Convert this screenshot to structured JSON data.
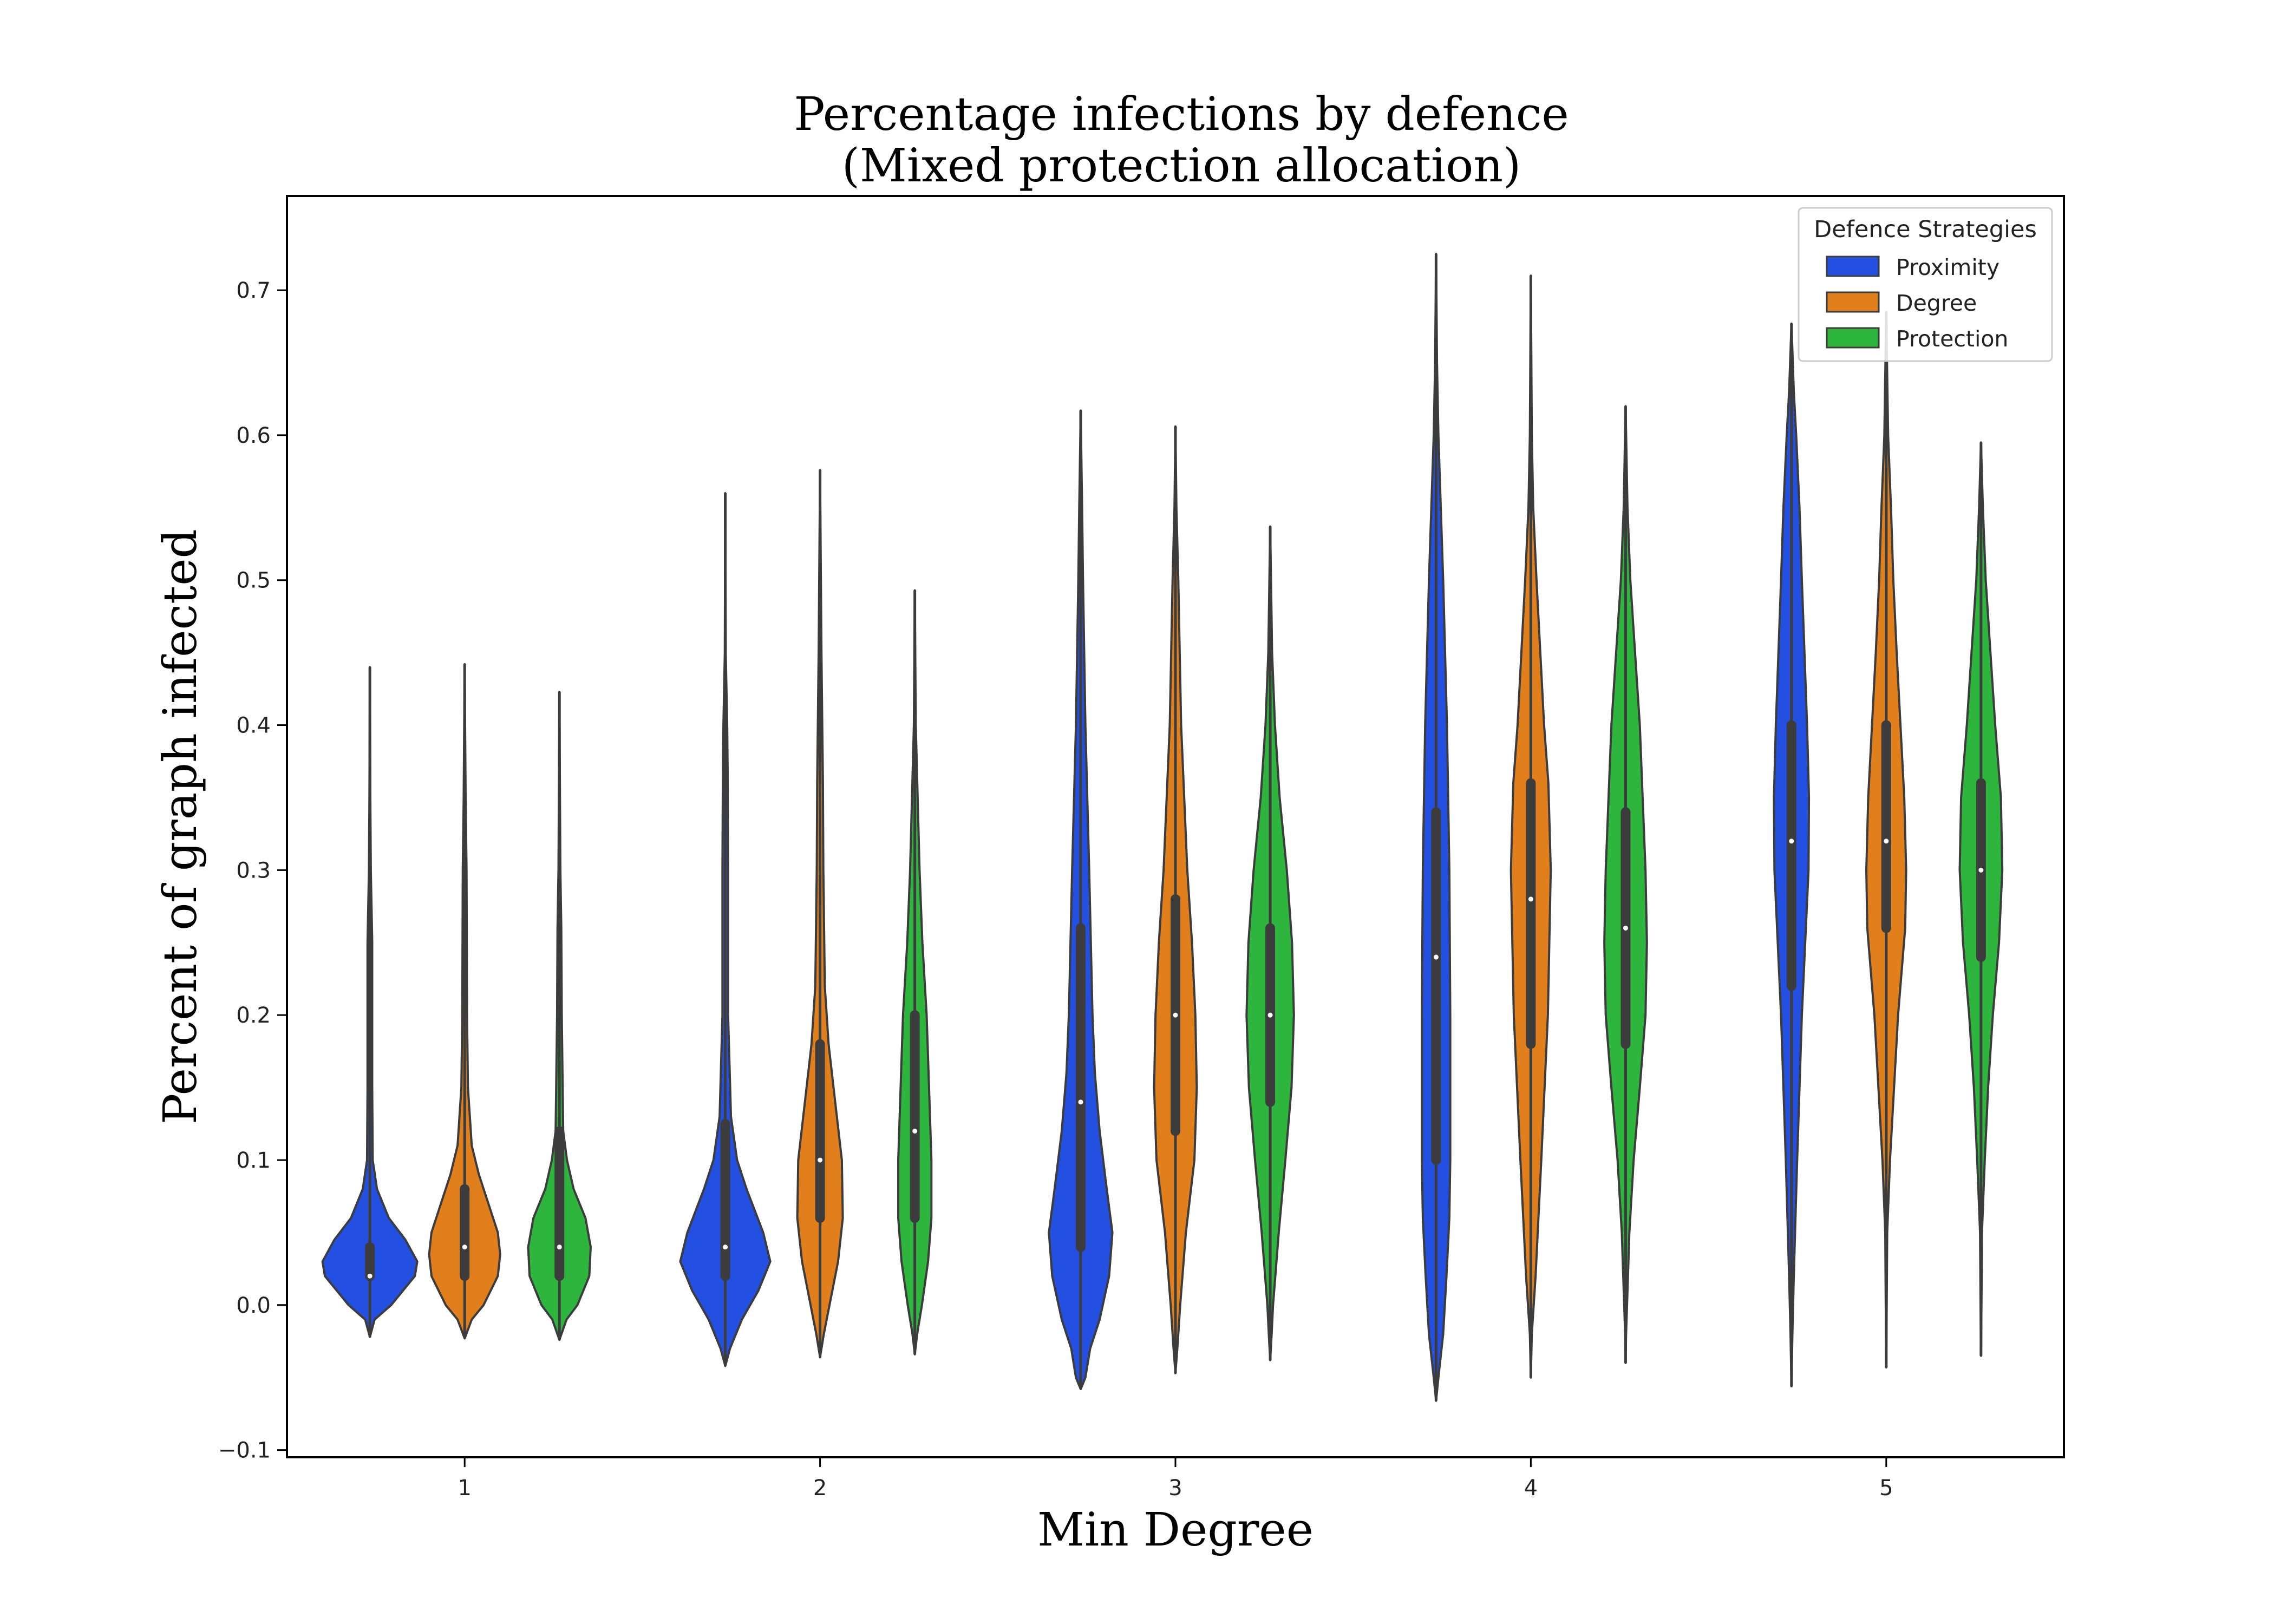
{
  "chart_data": {
    "type": "violin",
    "title_line1": "Percentage infections by defence",
    "title_line2": "(Mixed protection allocation)",
    "xlabel": "Min Degree",
    "ylabel": "Percent of graph infected",
    "categories": [
      "1",
      "2",
      "3",
      "4",
      "5"
    ],
    "ylim": [
      -0.105,
      0.765
    ],
    "yticks": [
      -0.1,
      0.0,
      0.1,
      0.2,
      0.3,
      0.4,
      0.5,
      0.6,
      0.7
    ],
    "ytick_labels": [
      "−0.1",
      "0.0",
      "0.1",
      "0.2",
      "0.3",
      "0.4",
      "0.5",
      "0.6",
      "0.7"
    ],
    "legend": {
      "title": "Defence Strategies",
      "position": "upper right"
    },
    "series": [
      {
        "name": "Proximity",
        "color": "#2350e0",
        "stats": [
          {
            "min": -0.022,
            "q1": 0.02,
            "median": 0.02,
            "q3": 0.04,
            "max": 0.44,
            "profile": [
              [
                -0.022,
                0.0
              ],
              [
                -0.01,
                0.1
              ],
              [
                0.0,
                0.45
              ],
              [
                0.02,
                0.95
              ],
              [
                0.03,
                1.0
              ],
              [
                0.045,
                0.75
              ],
              [
                0.06,
                0.4
              ],
              [
                0.08,
                0.15
              ],
              [
                0.1,
                0.06
              ],
              [
                0.15,
                0.05
              ],
              [
                0.2,
                0.05
              ],
              [
                0.25,
                0.05
              ],
              [
                0.3,
                0.02
              ],
              [
                0.35,
                0.01
              ],
              [
                0.44,
                0.0
              ]
            ]
          },
          {
            "min": -0.042,
            "q1": 0.02,
            "median": 0.04,
            "q3": 0.125,
            "max": 0.56,
            "profile": [
              [
                -0.042,
                0.0
              ],
              [
                -0.03,
                0.1
              ],
              [
                -0.01,
                0.35
              ],
              [
                0.01,
                0.7
              ],
              [
                0.03,
                0.95
              ],
              [
                0.05,
                0.8
              ],
              [
                0.08,
                0.45
              ],
              [
                0.1,
                0.25
              ],
              [
                0.13,
                0.12
              ],
              [
                0.2,
                0.06
              ],
              [
                0.3,
                0.06
              ],
              [
                0.37,
                0.05
              ],
              [
                0.4,
                0.04
              ],
              [
                0.45,
                0.01
              ],
              [
                0.56,
                0.0
              ]
            ]
          },
          {
            "min": -0.058,
            "q1": 0.04,
            "median": 0.14,
            "q3": 0.26,
            "max": 0.617,
            "profile": [
              [
                -0.058,
                0.0
              ],
              [
                -0.05,
                0.1
              ],
              [
                -0.03,
                0.2
              ],
              [
                -0.01,
                0.4
              ],
              [
                0.02,
                0.6
              ],
              [
                0.05,
                0.67
              ],
              [
                0.08,
                0.55
              ],
              [
                0.12,
                0.4
              ],
              [
                0.16,
                0.3
              ],
              [
                0.2,
                0.25
              ],
              [
                0.3,
                0.18
              ],
              [
                0.4,
                0.1
              ],
              [
                0.5,
                0.05
              ],
              [
                0.55,
                0.03
              ],
              [
                0.617,
                0.0
              ]
            ]
          },
          {
            "min": -0.066,
            "q1": 0.1,
            "median": 0.24,
            "q3": 0.34,
            "max": 0.725,
            "profile": [
              [
                -0.066,
                0.0
              ],
              [
                -0.05,
                0.05
              ],
              [
                -0.02,
                0.15
              ],
              [
                0.02,
                0.22
              ],
              [
                0.06,
                0.28
              ],
              [
                0.1,
                0.3
              ],
              [
                0.2,
                0.3
              ],
              [
                0.3,
                0.28
              ],
              [
                0.4,
                0.23
              ],
              [
                0.5,
                0.15
              ],
              [
                0.55,
                0.1
              ],
              [
                0.6,
                0.05
              ],
              [
                0.65,
                0.02
              ],
              [
                0.725,
                0.0
              ]
            ]
          },
          {
            "min": -0.056,
            "q1": 0.22,
            "median": 0.32,
            "q3": 0.4,
            "max": 0.677,
            "profile": [
              [
                -0.056,
                0.0
              ],
              [
                -0.02,
                0.02
              ],
              [
                0.02,
                0.05
              ],
              [
                0.1,
                0.12
              ],
              [
                0.2,
                0.22
              ],
              [
                0.3,
                0.36
              ],
              [
                0.35,
                0.37
              ],
              [
                0.4,
                0.33
              ],
              [
                0.5,
                0.22
              ],
              [
                0.55,
                0.17
              ],
              [
                0.6,
                0.1
              ],
              [
                0.63,
                0.05
              ],
              [
                0.677,
                0.0
              ]
            ]
          }
        ]
      },
      {
        "name": "Degree",
        "color": "#e07f1c",
        "stats": [
          {
            "min": -0.023,
            "q1": 0.02,
            "median": 0.04,
            "q3": 0.08,
            "max": 0.442,
            "profile": [
              [
                -0.023,
                0.0
              ],
              [
                -0.01,
                0.15
              ],
              [
                0.0,
                0.4
              ],
              [
                0.02,
                0.7
              ],
              [
                0.035,
                0.75
              ],
              [
                0.05,
                0.7
              ],
              [
                0.07,
                0.5
              ],
              [
                0.09,
                0.3
              ],
              [
                0.11,
                0.15
              ],
              [
                0.15,
                0.07
              ],
              [
                0.2,
                0.05
              ],
              [
                0.3,
                0.04
              ],
              [
                0.35,
                0.02
              ],
              [
                0.442,
                0.0
              ]
            ]
          },
          {
            "min": -0.036,
            "q1": 0.06,
            "median": 0.1,
            "q3": 0.18,
            "max": 0.576,
            "profile": [
              [
                -0.036,
                0.0
              ],
              [
                -0.02,
                0.08
              ],
              [
                0.0,
                0.2
              ],
              [
                0.03,
                0.38
              ],
              [
                0.06,
                0.48
              ],
              [
                0.1,
                0.46
              ],
              [
                0.14,
                0.32
              ],
              [
                0.18,
                0.18
              ],
              [
                0.22,
                0.1
              ],
              [
                0.3,
                0.07
              ],
              [
                0.36,
                0.06
              ],
              [
                0.45,
                0.03
              ],
              [
                0.576,
                0.0
              ]
            ]
          },
          {
            "min": -0.047,
            "q1": 0.12,
            "median": 0.2,
            "q3": 0.28,
            "max": 0.606,
            "profile": [
              [
                -0.047,
                0.0
              ],
              [
                -0.03,
                0.04
              ],
              [
                0.0,
                0.1
              ],
              [
                0.05,
                0.22
              ],
              [
                0.1,
                0.4
              ],
              [
                0.15,
                0.45
              ],
              [
                0.2,
                0.42
              ],
              [
                0.25,
                0.35
              ],
              [
                0.3,
                0.25
              ],
              [
                0.4,
                0.12
              ],
              [
                0.5,
                0.06
              ],
              [
                0.55,
                0.02
              ],
              [
                0.606,
                0.0
              ]
            ]
          },
          {
            "min": -0.05,
            "q1": 0.18,
            "median": 0.28,
            "q3": 0.36,
            "max": 0.71,
            "profile": [
              [
                -0.05,
                0.0
              ],
              [
                -0.02,
                0.02
              ],
              [
                0.02,
                0.1
              ],
              [
                0.1,
                0.22
              ],
              [
                0.2,
                0.36
              ],
              [
                0.3,
                0.42
              ],
              [
                0.36,
                0.37
              ],
              [
                0.4,
                0.28
              ],
              [
                0.45,
                0.2
              ],
              [
                0.5,
                0.12
              ],
              [
                0.55,
                0.05
              ],
              [
                0.6,
                0.02
              ],
              [
                0.71,
                0.0
              ]
            ]
          },
          {
            "min": -0.043,
            "q1": 0.26,
            "median": 0.32,
            "q3": 0.4,
            "max": 0.685,
            "profile": [
              [
                -0.043,
                0.0
              ],
              [
                0.0,
                0.01
              ],
              [
                0.05,
                0.02
              ],
              [
                0.1,
                0.08
              ],
              [
                0.2,
                0.25
              ],
              [
                0.26,
                0.4
              ],
              [
                0.3,
                0.42
              ],
              [
                0.35,
                0.38
              ],
              [
                0.4,
                0.3
              ],
              [
                0.45,
                0.22
              ],
              [
                0.5,
                0.15
              ],
              [
                0.55,
                0.1
              ],
              [
                0.6,
                0.04
              ],
              [
                0.685,
                0.0
              ]
            ]
          }
        ]
      },
      {
        "name": "Protection",
        "color": "#2eb53e",
        "stats": [
          {
            "min": -0.024,
            "q1": 0.02,
            "median": 0.04,
            "q3": 0.12,
            "max": 0.423,
            "profile": [
              [
                -0.024,
                0.0
              ],
              [
                -0.01,
                0.15
              ],
              [
                0.0,
                0.38
              ],
              [
                0.02,
                0.63
              ],
              [
                0.04,
                0.66
              ],
              [
                0.06,
                0.55
              ],
              [
                0.08,
                0.3
              ],
              [
                0.1,
                0.16
              ],
              [
                0.12,
                0.08
              ],
              [
                0.2,
                0.05
              ],
              [
                0.26,
                0.04
              ],
              [
                0.3,
                0.02
              ],
              [
                0.423,
                0.0
              ]
            ]
          },
          {
            "min": -0.034,
            "q1": 0.06,
            "median": 0.12,
            "q3": 0.2,
            "max": 0.493,
            "profile": [
              [
                -0.034,
                0.0
              ],
              [
                -0.02,
                0.05
              ],
              [
                0.0,
                0.15
              ],
              [
                0.03,
                0.28
              ],
              [
                0.06,
                0.35
              ],
              [
                0.1,
                0.35
              ],
              [
                0.15,
                0.3
              ],
              [
                0.2,
                0.25
              ],
              [
                0.25,
                0.16
              ],
              [
                0.3,
                0.1
              ],
              [
                0.35,
                0.06
              ],
              [
                0.4,
                0.02
              ],
              [
                0.493,
                0.0
              ]
            ]
          },
          {
            "min": -0.038,
            "q1": 0.14,
            "median": 0.2,
            "q3": 0.26,
            "max": 0.537,
            "profile": [
              [
                -0.038,
                0.0
              ],
              [
                -0.02,
                0.03
              ],
              [
                0.0,
                0.06
              ],
              [
                0.05,
                0.18
              ],
              [
                0.1,
                0.32
              ],
              [
                0.15,
                0.45
              ],
              [
                0.2,
                0.5
              ],
              [
                0.25,
                0.46
              ],
              [
                0.3,
                0.35
              ],
              [
                0.35,
                0.2
              ],
              [
                0.4,
                0.1
              ],
              [
                0.45,
                0.04
              ],
              [
                0.537,
                0.0
              ]
            ]
          },
          {
            "min": -0.04,
            "q1": 0.18,
            "median": 0.26,
            "q3": 0.34,
            "max": 0.62,
            "profile": [
              [
                -0.04,
                0.0
              ],
              [
                -0.02,
                0.01
              ],
              [
                0.0,
                0.03
              ],
              [
                0.05,
                0.08
              ],
              [
                0.1,
                0.17
              ],
              [
                0.15,
                0.3
              ],
              [
                0.2,
                0.42
              ],
              [
                0.25,
                0.45
              ],
              [
                0.3,
                0.42
              ],
              [
                0.35,
                0.36
              ],
              [
                0.4,
                0.3
              ],
              [
                0.45,
                0.2
              ],
              [
                0.5,
                0.1
              ],
              [
                0.55,
                0.04
              ],
              [
                0.62,
                0.0
              ]
            ]
          },
          {
            "min": -0.035,
            "q1": 0.24,
            "median": 0.3,
            "q3": 0.36,
            "max": 0.595,
            "profile": [
              [
                -0.035,
                0.0
              ],
              [
                0.0,
                0.01
              ],
              [
                0.05,
                0.02
              ],
              [
                0.1,
                0.08
              ],
              [
                0.15,
                0.15
              ],
              [
                0.2,
                0.25
              ],
              [
                0.25,
                0.38
              ],
              [
                0.3,
                0.45
              ],
              [
                0.35,
                0.42
              ],
              [
                0.4,
                0.3
              ],
              [
                0.45,
                0.2
              ],
              [
                0.5,
                0.1
              ],
              [
                0.55,
                0.04
              ],
              [
                0.595,
                0.0
              ]
            ]
          }
        ]
      }
    ]
  }
}
